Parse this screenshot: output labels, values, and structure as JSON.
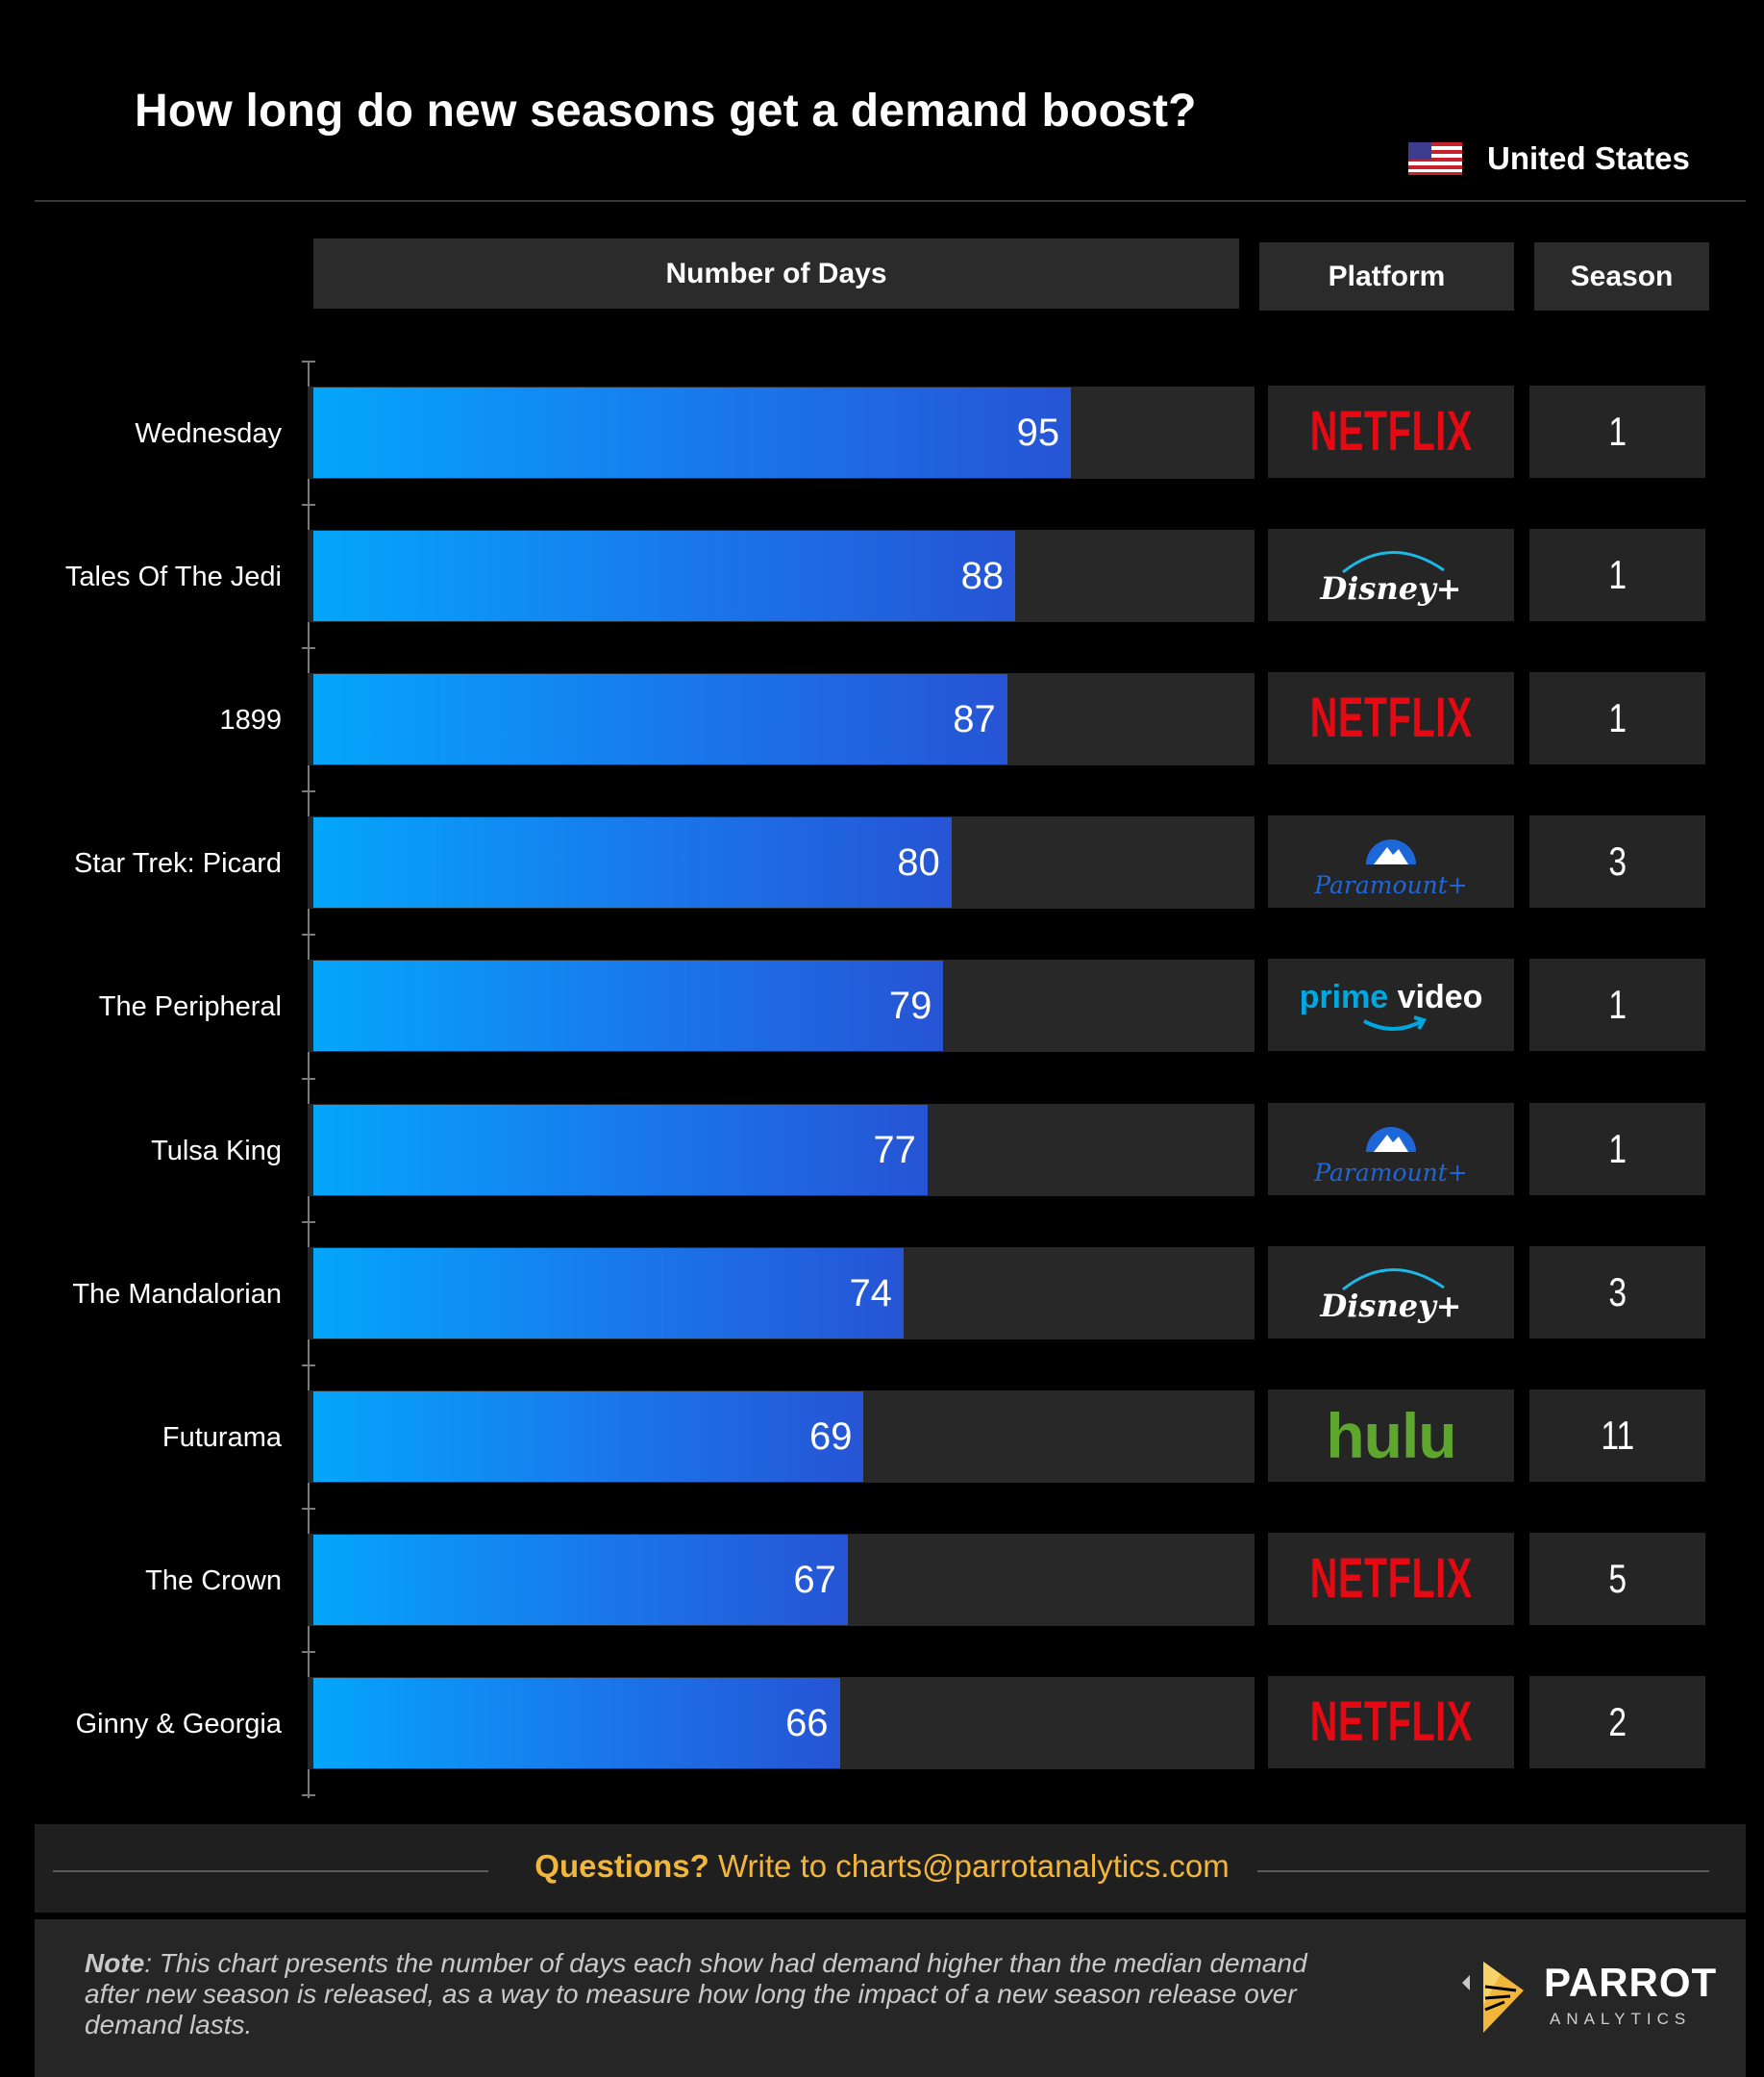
{
  "title": "How long do new seasons get a demand boost?",
  "region": {
    "label": "United States",
    "flag_icon": "us-flag-icon"
  },
  "headers": {
    "days": "Number of Days",
    "platform": "Platform",
    "season": "Season"
  },
  "colors": {
    "bar_start": "#04a6fb",
    "bar_end": "#2654d4",
    "track": "#282828",
    "netflix": "#e50914",
    "disney_arc": "#1cb8e8",
    "paramount": "#1e67d9",
    "prime": "#00a8e1",
    "hulu": "#5fa62f",
    "accent": "#f2b63a"
  },
  "chart_data": {
    "type": "bar",
    "orientation": "horizontal",
    "categories": [
      "Wednesday",
      "Tales Of The Jedi",
      "1899",
      "Star Trek: Picard",
      "The Peripheral",
      "Tulsa King",
      "The Mandalorian",
      "Futurama",
      "The Crown",
      "Ginny & Georgia"
    ],
    "values": [
      95,
      88,
      87,
      80,
      79,
      77,
      74,
      69,
      67,
      66
    ],
    "value_label": "Number of Days",
    "xlim": [
      0,
      118
    ],
    "platforms": [
      "Netflix",
      "Disney+",
      "Netflix",
      "Paramount+",
      "Prime Video",
      "Paramount+",
      "Disney+",
      "Hulu",
      "Netflix",
      "Netflix"
    ],
    "seasons": [
      "1",
      "1",
      "1",
      "3",
      "1",
      "1",
      "3",
      "11",
      "5",
      "2"
    ],
    "data_labels": true,
    "grid": false
  },
  "platform_logos": {
    "Netflix": "NETFLIX",
    "Disney+": "Disney+",
    "Paramount+": "Paramount+",
    "Prime Video": "prime video",
    "Hulu": "hulu"
  },
  "footer": {
    "question_bold": "Questions?",
    "question_text": " Write to charts@parrotanalytics.com",
    "note_label": "Note",
    "note_text": ": This chart presents the number of days each show had demand higher than the median demand after new season is released, as a way to measure how long the impact of a new season release over demand lasts."
  },
  "brand": {
    "name": "PARROT",
    "sub": "ANALYTICS"
  }
}
